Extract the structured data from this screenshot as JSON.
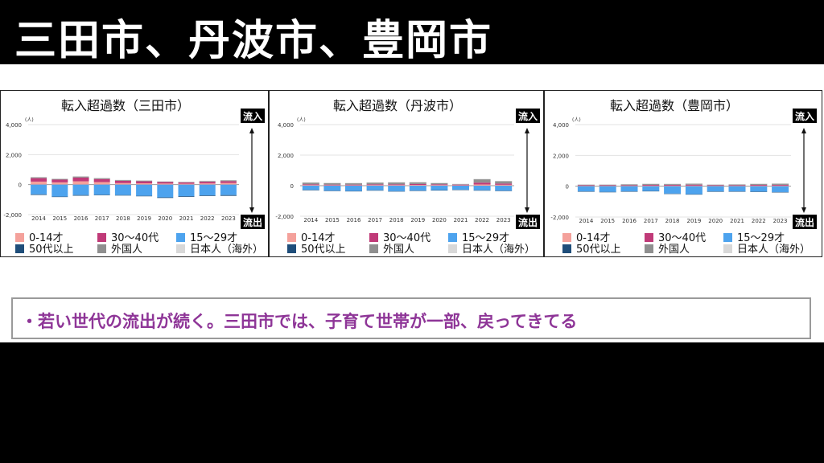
{
  "slide": {
    "title": "三田市、丹波市、豊岡市",
    "bullet": "・若い世代の流出が続く。三田市では、子育て世帯が一部、戻ってきてる"
  },
  "flow_labels": {
    "in": "流入",
    "out": "流出"
  },
  "legend": [
    {
      "label": "0-14才",
      "color": "#f4a19b"
    },
    {
      "label": "30〜40代",
      "color": "#c03a78"
    },
    {
      "label": "15〜29才",
      "color": "#4da3ee"
    },
    {
      "label": "50代以上",
      "color": "#1f4e7a"
    },
    {
      "label": "外国人",
      "color": "#8f8f8f"
    },
    {
      "label": "日本人（海外）",
      "color": "#d8d8d8"
    }
  ],
  "chart_data": [
    {
      "type": "bar",
      "stacked": true,
      "title": "転入超過数（三田市）",
      "yunit": "(人)",
      "ylim": [
        -2000,
        4000
      ],
      "yticks": [
        "4,000",
        "2,000",
        "0",
        "-2,000"
      ],
      "categories": [
        "2014",
        "2015",
        "2016",
        "2017",
        "2018",
        "2019",
        "2020",
        "2021",
        "2022",
        "2023"
      ],
      "series": [
        {
          "name": "0-14才",
          "values": [
            200,
            150,
            220,
            170,
            100,
            90,
            70,
            60,
            80,
            110
          ]
        },
        {
          "name": "30〜40代",
          "values": [
            230,
            180,
            250,
            200,
            150,
            130,
            100,
            80,
            110,
            120
          ]
        },
        {
          "name": "15〜29才",
          "values": [
            -650,
            -800,
            -700,
            -680,
            -700,
            -750,
            -850,
            -780,
            -720,
            -700
          ]
        },
        {
          "name": "50代以上",
          "values": [
            -40,
            -30,
            -40,
            -30,
            -30,
            -30,
            -40,
            -40,
            -40,
            -50
          ]
        },
        {
          "name": "外国人",
          "values": [
            60,
            50,
            70,
            60,
            50,
            50,
            40,
            40,
            50,
            60
          ]
        },
        {
          "name": "日本人（海外）",
          "values": [
            20,
            20,
            20,
            20,
            20,
            20,
            10,
            10,
            20,
            20
          ]
        }
      ]
    },
    {
      "type": "bar",
      "stacked": true,
      "title": "転入超過数（丹波市）",
      "yunit": "(人)",
      "ylim": [
        -2000,
        4000
      ],
      "yticks": [
        "4,000",
        "2,000",
        "0",
        "-2,000"
      ],
      "categories": [
        "2014",
        "2015",
        "2016",
        "2017",
        "2018",
        "2019",
        "2020",
        "2021",
        "2022",
        "2023"
      ],
      "series": [
        {
          "name": "0-14才",
          "values": [
            40,
            30,
            30,
            40,
            40,
            50,
            40,
            30,
            80,
            60
          ]
        },
        {
          "name": "30〜40代",
          "values": [
            50,
            40,
            40,
            50,
            50,
            60,
            50,
            40,
            120,
            80
          ]
        },
        {
          "name": "15〜29才",
          "values": [
            -280,
            -330,
            -350,
            -300,
            -360,
            -320,
            -290,
            -260,
            -300,
            -330
          ]
        },
        {
          "name": "50代以上",
          "values": [
            -20,
            -20,
            -20,
            -20,
            -20,
            -20,
            -20,
            -20,
            -20,
            -20
          ]
        },
        {
          "name": "外国人",
          "values": [
            120,
            110,
            100,
            120,
            130,
            120,
            90,
            40,
            230,
            160
          ]
        },
        {
          "name": "日本人（海外）",
          "values": [
            10,
            10,
            10,
            10,
            10,
            10,
            10,
            10,
            10,
            10
          ]
        }
      ]
    },
    {
      "type": "bar",
      "stacked": true,
      "title": "転入超過数（豊岡市）",
      "yunit": "(人)",
      "ylim": [
        -2000,
        4000
      ],
      "yticks": [
        "4,000",
        "2,000",
        "0",
        "-2,000"
      ],
      "categories": [
        "2014",
        "2015",
        "2016",
        "2017",
        "2018",
        "2019",
        "2020",
        "2021",
        "2022",
        "2023"
      ],
      "series": [
        {
          "name": "0-14才",
          "values": [
            30,
            30,
            30,
            40,
            40,
            40,
            30,
            30,
            40,
            40
          ]
        },
        {
          "name": "30〜40代",
          "values": [
            40,
            40,
            40,
            50,
            50,
            60,
            40,
            40,
            50,
            50
          ]
        },
        {
          "name": "15〜29才",
          "values": [
            -330,
            -370,
            -330,
            -310,
            -480,
            -520,
            -340,
            -330,
            -350,
            -380
          ]
        },
        {
          "name": "50代以上",
          "values": [
            -20,
            -20,
            -20,
            -20,
            -20,
            -20,
            -20,
            -20,
            -20,
            -20
          ]
        },
        {
          "name": "外国人",
          "values": [
            40,
            40,
            60,
            70,
            60,
            70,
            40,
            50,
            70,
            80
          ]
        },
        {
          "name": "日本人（海外）",
          "values": [
            10,
            10,
            10,
            10,
            10,
            10,
            10,
            10,
            10,
            10
          ]
        }
      ]
    }
  ]
}
